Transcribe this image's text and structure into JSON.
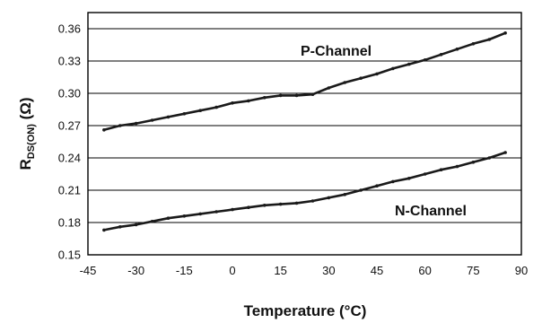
{
  "chart_data": {
    "type": "line",
    "xlabel": "Temperature (°C)",
    "ylabel": {
      "main": "R",
      "sub": "DS(ON)",
      "unit": " (Ω)"
    },
    "xlim": [
      -45,
      90
    ],
    "ylim": [
      0.15,
      0.375
    ],
    "xticks": [
      -45,
      -30,
      -15,
      0,
      15,
      30,
      45,
      60,
      75,
      90
    ],
    "yticks": [
      0.15,
      0.18,
      0.21,
      0.24,
      0.27,
      0.3,
      0.33,
      0.36
    ],
    "ytick_labels": [
      "0.15",
      "0.18",
      "0.21",
      "0.24",
      "0.27",
      "0.30",
      "0.33",
      "0.36"
    ],
    "grid": "horizontal",
    "series": [
      {
        "name": "P-Channel",
        "x": [
          -40,
          -35,
          -30,
          -25,
          -20,
          -15,
          -10,
          -5,
          0,
          5,
          10,
          15,
          20,
          25,
          30,
          35,
          40,
          45,
          50,
          55,
          60,
          65,
          70,
          75,
          80,
          85
        ],
        "y": [
          0.266,
          0.27,
          0.272,
          0.275,
          0.278,
          0.281,
          0.284,
          0.287,
          0.291,
          0.293,
          0.296,
          0.298,
          0.298,
          0.299,
          0.305,
          0.31,
          0.314,
          0.318,
          0.323,
          0.327,
          0.331,
          0.336,
          0.341,
          0.346,
          0.35,
          0.356
        ]
      },
      {
        "name": "N-Channel",
        "x": [
          -40,
          -35,
          -30,
          -25,
          -20,
          -15,
          -10,
          -5,
          0,
          5,
          10,
          15,
          20,
          25,
          30,
          35,
          40,
          45,
          50,
          55,
          60,
          65,
          70,
          75,
          80,
          85
        ],
        "y": [
          0.173,
          0.176,
          0.178,
          0.181,
          0.184,
          0.186,
          0.188,
          0.19,
          0.192,
          0.194,
          0.196,
          0.197,
          0.198,
          0.2,
          0.203,
          0.206,
          0.21,
          0.214,
          0.218,
          0.221,
          0.225,
          0.229,
          0.232,
          0.236,
          0.24,
          0.245
        ]
      }
    ]
  }
}
